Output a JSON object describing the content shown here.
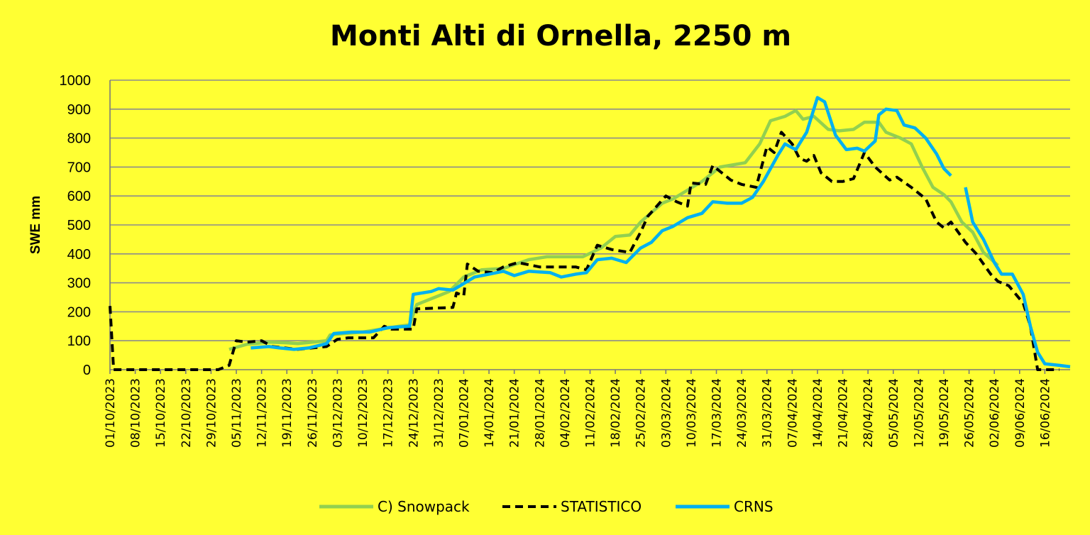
{
  "chart_data": {
    "type": "line",
    "title": "Monti Alti di Ornella, 2250 m",
    "ylabel": "SWE mm",
    "xlabel": "",
    "ylim": [
      0,
      1000
    ],
    "yticks": [
      0,
      100,
      200,
      300,
      400,
      500,
      600,
      700,
      800,
      900,
      1000
    ],
    "xlim": [
      "01/10/2023",
      "23/06/2024"
    ],
    "xticks": [
      "01/10/2023",
      "08/10/2023",
      "15/10/2023",
      "22/10/2023",
      "29/10/2023",
      "05/11/2023",
      "12/11/2023",
      "19/11/2023",
      "26/11/2023",
      "03/12/2023",
      "10/12/2023",
      "17/12/2023",
      "24/12/2023",
      "31/12/2023",
      "07/01/2024",
      "14/01/2024",
      "21/01/2024",
      "28/01/2024",
      "04/02/2024",
      "11/02/2024",
      "18/02/2024",
      "25/02/2024",
      "03/03/2024",
      "10/03/2024",
      "17/03/2024",
      "24/03/2024",
      "31/03/2024",
      "07/04/2024",
      "14/04/2024",
      "21/04/2024",
      "28/04/2024",
      "05/05/2024",
      "12/05/2024",
      "19/05/2024",
      "26/05/2024",
      "02/06/2024",
      "09/06/2024",
      "16/06/2024"
    ],
    "grid": true,
    "legend_position": "bottom",
    "series": [
      {
        "name": "C) Snowpack",
        "color": "#92d050",
        "dash": "solid",
        "points": [
          [
            "03/11/2023",
            70
          ],
          [
            "08/11/2023",
            88
          ],
          [
            "14/11/2023",
            95
          ],
          [
            "19/11/2023",
            93
          ],
          [
            "22/11/2023",
            90
          ],
          [
            "26/11/2023",
            95
          ],
          [
            "30/11/2023",
            100
          ],
          [
            "01/12/2023",
            120
          ],
          [
            "05/12/2023",
            125
          ],
          [
            "10/12/2023",
            130
          ],
          [
            "15/12/2023",
            140
          ],
          [
            "20/12/2023",
            150
          ],
          [
            "23/12/2023",
            155
          ],
          [
            "25/12/2023",
            225
          ],
          [
            "30/12/2023",
            250
          ],
          [
            "03/01/2024",
            270
          ],
          [
            "07/01/2024",
            320
          ],
          [
            "12/01/2024",
            345
          ],
          [
            "18/01/2024",
            350
          ],
          [
            "25/01/2024",
            380
          ],
          [
            "30/01/2024",
            390
          ],
          [
            "09/02/2024",
            390
          ],
          [
            "14/02/2024",
            420
          ],
          [
            "18/02/2024",
            460
          ],
          [
            "22/02/2024",
            465
          ],
          [
            "25/02/2024",
            510
          ],
          [
            "02/03/2024",
            575
          ],
          [
            "05/03/2024",
            590
          ],
          [
            "09/03/2024",
            620
          ],
          [
            "13/03/2024",
            650
          ],
          [
            "18/03/2024",
            700
          ],
          [
            "25/03/2024",
            715
          ],
          [
            "29/03/2024",
            780
          ],
          [
            "01/04/2024",
            860
          ],
          [
            "05/04/2024",
            875
          ],
          [
            "08/04/2024",
            895
          ],
          [
            "10/04/2024",
            865
          ],
          [
            "13/04/2024",
            875
          ],
          [
            "17/04/2024",
            830
          ],
          [
            "20/04/2024",
            825
          ],
          [
            "24/04/2024",
            830
          ],
          [
            "27/04/2024",
            855
          ],
          [
            "01/05/2024",
            855
          ],
          [
            "03/05/2024",
            820
          ],
          [
            "07/05/2024",
            800
          ],
          [
            "10/05/2024",
            780
          ],
          [
            "13/05/2024",
            700
          ],
          [
            "16/05/2024",
            630
          ],
          [
            "19/05/2024",
            605
          ],
          [
            "21/05/2024",
            580
          ],
          [
            "24/05/2024",
            510
          ],
          [
            "27/05/2024",
            475
          ],
          [
            "30/05/2024",
            405
          ],
          [
            "03/06/2024",
            360
          ]
        ]
      },
      {
        "name": "STATISTICO",
        "color": "#000000",
        "dash": "dashed",
        "points": [
          [
            "01/10/2023",
            220
          ],
          [
            "02/10/2023",
            0
          ],
          [
            "31/10/2023",
            0
          ],
          [
            "03/11/2023",
            15
          ],
          [
            "05/11/2023",
            100
          ],
          [
            "08/11/2023",
            95
          ],
          [
            "12/11/2023",
            100
          ],
          [
            "15/11/2023",
            80
          ],
          [
            "22/11/2023",
            70
          ],
          [
            "30/11/2023",
            80
          ],
          [
            "03/12/2023",
            105
          ],
          [
            "06/12/2023",
            110
          ],
          [
            "13/12/2023",
            110
          ],
          [
            "16/12/2023",
            150
          ],
          [
            "18/12/2023",
            140
          ],
          [
            "24/12/2023",
            140
          ],
          [
            "25/12/2023",
            210
          ],
          [
            "04/01/2024",
            215
          ],
          [
            "05/01/2024",
            265
          ],
          [
            "07/01/2024",
            255
          ],
          [
            "08/01/2024",
            365
          ],
          [
            "11/01/2024",
            340
          ],
          [
            "15/01/2024",
            335
          ],
          [
            "18/01/2024",
            355
          ],
          [
            "22/01/2024",
            370
          ],
          [
            "28/01/2024",
            355
          ],
          [
            "07/02/2024",
            355
          ],
          [
            "10/02/2024",
            345
          ],
          [
            "13/02/2024",
            430
          ],
          [
            "17/02/2024",
            415
          ],
          [
            "22/02/2024",
            405
          ],
          [
            "25/02/2024",
            475
          ],
          [
            "27/02/2024",
            530
          ],
          [
            "03/03/2024",
            600
          ],
          [
            "06/03/2024",
            580
          ],
          [
            "09/03/2024",
            565
          ],
          [
            "10/03/2024",
            645
          ],
          [
            "14/03/2024",
            640
          ],
          [
            "16/03/2024",
            705
          ],
          [
            "21/03/2024",
            655
          ],
          [
            "24/03/2024",
            640
          ],
          [
            "28/03/2024",
            630
          ],
          [
            "31/03/2024",
            770
          ],
          [
            "02/04/2024",
            750
          ],
          [
            "04/04/2024",
            820
          ],
          [
            "07/04/2024",
            780
          ],
          [
            "09/04/2024",
            730
          ],
          [
            "11/04/2024",
            720
          ],
          [
            "13/04/2024",
            740
          ],
          [
            "15/04/2024",
            680
          ],
          [
            "18/04/2024",
            650
          ],
          [
            "21/04/2024",
            650
          ],
          [
            "24/04/2024",
            660
          ],
          [
            "27/04/2024",
            750
          ],
          [
            "30/04/2024",
            700
          ],
          [
            "04/05/2024",
            655
          ],
          [
            "06/05/2024",
            665
          ],
          [
            "10/05/2024",
            630
          ],
          [
            "14/05/2024",
            590
          ],
          [
            "17/05/2024",
            510
          ],
          [
            "19/05/2024",
            490
          ],
          [
            "21/05/2024",
            510
          ],
          [
            "25/05/2024",
            440
          ],
          [
            "28/05/2024",
            400
          ],
          [
            "01/06/2024",
            330
          ],
          [
            "03/06/2024",
            305
          ],
          [
            "06/06/2024",
            290
          ],
          [
            "10/06/2024",
            230
          ],
          [
            "12/06/2024",
            150
          ],
          [
            "14/06/2024",
            0
          ],
          [
            "20/06/2024",
            0
          ]
        ]
      },
      {
        "name": "CRNS",
        "color": "#00b0f0",
        "dash": "solid",
        "segments": [
          [
            [
              "09/11/2023",
              75
            ],
            [
              "14/11/2023",
              80
            ],
            [
              "17/11/2023",
              75
            ],
            [
              "21/11/2023",
              70
            ],
            [
              "25/11/2023",
              75
            ],
            [
              "30/11/2023",
              90
            ],
            [
              "02/12/2023",
              125
            ],
            [
              "07/12/2023",
              130
            ],
            [
              "12/12/2023",
              130
            ],
            [
              "17/12/2023",
              145
            ],
            [
              "23/12/2023",
              150
            ],
            [
              "24/12/2023",
              260
            ],
            [
              "29/12/2023",
              270
            ],
            [
              "31/12/2023",
              280
            ],
            [
              "04/01/2024",
              275
            ],
            [
              "06/01/2024",
              290
            ],
            [
              "10/01/2024",
              320
            ],
            [
              "14/01/2024",
              330
            ],
            [
              "18/01/2024",
              340
            ],
            [
              "21/01/2024",
              325
            ],
            [
              "25/01/2024",
              340
            ],
            [
              "31/01/2024",
              335
            ],
            [
              "03/02/2024",
              320
            ],
            [
              "07/02/2024",
              330
            ],
            [
              "10/02/2024",
              335
            ],
            [
              "13/02/2024",
              380
            ],
            [
              "17/02/2024",
              385
            ],
            [
              "21/02/2024",
              370
            ],
            [
              "25/02/2024",
              420
            ],
            [
              "28/02/2024",
              440
            ],
            [
              "02/03/2024",
              480
            ],
            [
              "05/03/2024",
              495
            ],
            [
              "09/03/2024",
              525
            ],
            [
              "13/03/2024",
              540
            ],
            [
              "16/03/2024",
              580
            ],
            [
              "20/03/2024",
              575
            ],
            [
              "24/03/2024",
              575
            ],
            [
              "27/03/2024",
              595
            ],
            [
              "30/03/2024",
              650
            ],
            [
              "03/04/2024",
              740
            ],
            [
              "05/04/2024",
              780
            ],
            [
              "08/04/2024",
              760
            ],
            [
              "11/04/2024",
              820
            ],
            [
              "14/04/2024",
              940
            ],
            [
              "16/04/2024",
              925
            ],
            [
              "19/04/2024",
              810
            ],
            [
              "22/04/2024",
              760
            ],
            [
              "25/04/2024",
              765
            ],
            [
              "27/04/2024",
              755
            ],
            [
              "30/04/2024",
              790
            ],
            [
              "01/05/2024",
              880
            ],
            [
              "03/05/2024",
              900
            ],
            [
              "06/05/2024",
              895
            ],
            [
              "08/05/2024",
              845
            ],
            [
              "11/05/2024",
              835
            ],
            [
              "14/05/2024",
              800
            ],
            [
              "17/05/2024",
              745
            ],
            [
              "19/05/2024",
              695
            ],
            [
              "21/05/2024",
              670
            ]
          ],
          [
            [
              "25/05/2024",
              630
            ],
            [
              "27/05/2024",
              510
            ],
            [
              "30/05/2024",
              450
            ],
            [
              "02/06/2024",
              370
            ],
            [
              "04/06/2024",
              330
            ],
            [
              "07/06/2024",
              330
            ],
            [
              "10/06/2024",
              260
            ],
            [
              "12/06/2024",
              150
            ],
            [
              "14/06/2024",
              60
            ],
            [
              "16/06/2024",
              20
            ],
            [
              "20/06/2024",
              15
            ],
            [
              "23/06/2024",
              10
            ]
          ]
        ]
      }
    ]
  }
}
